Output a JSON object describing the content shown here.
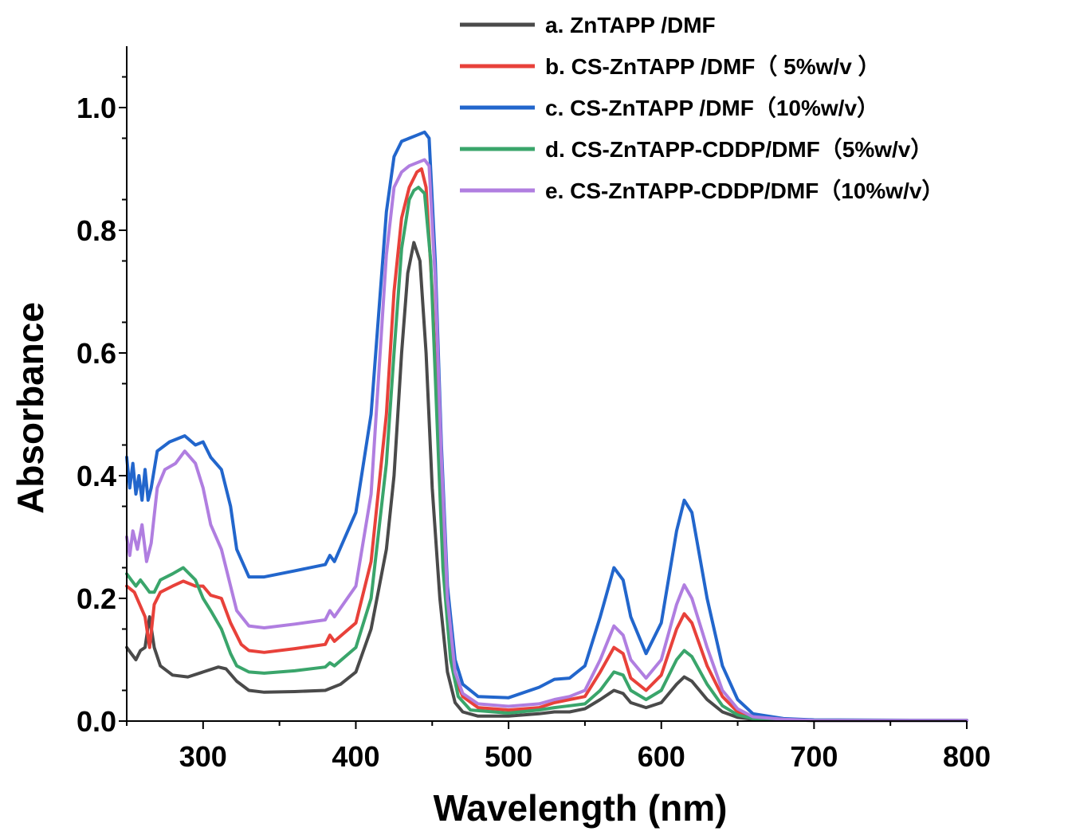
{
  "chart_data": {
    "type": "line",
    "xlabel": "Wavelength (nm)",
    "ylabel": "Absorbance",
    "xlim": [
      250,
      800
    ],
    "ylim": [
      0.0,
      1.1
    ],
    "xticks": [
      300,
      400,
      500,
      600,
      700,
      800
    ],
    "xtick_labels": [
      "300",
      "400",
      "500",
      "600",
      "700",
      "800"
    ],
    "yticks": [
      0.0,
      0.2,
      0.4,
      0.6,
      0.8,
      1.0
    ],
    "ytick_labels": [
      "0.0",
      "0.2",
      "0.4",
      "0.6",
      "0.8",
      "1.0"
    ],
    "grid": false,
    "legend_position": "top-right",
    "series": [
      {
        "name": "a. ZnTAPP /DMF",
        "color": "#4a4a4a",
        "x": [
          250,
          253,
          256,
          259,
          262,
          265,
          268,
          272,
          280,
          290,
          300,
          310,
          315,
          322,
          330,
          340,
          360,
          380,
          390,
          400,
          410,
          420,
          425,
          430,
          434,
          438,
          442,
          446,
          450,
          455,
          460,
          465,
          470,
          480,
          500,
          520,
          530,
          540,
          550,
          560,
          569,
          575,
          580,
          590,
          600,
          610,
          615,
          620,
          630,
          640,
          650,
          660,
          680,
          700,
          800
        ],
        "y": [
          0.12,
          0.11,
          0.1,
          0.115,
          0.12,
          0.17,
          0.12,
          0.09,
          0.075,
          0.072,
          0.08,
          0.088,
          0.085,
          0.065,
          0.05,
          0.047,
          0.048,
          0.05,
          0.06,
          0.08,
          0.15,
          0.28,
          0.4,
          0.6,
          0.73,
          0.78,
          0.75,
          0.6,
          0.38,
          0.2,
          0.08,
          0.03,
          0.015,
          0.008,
          0.008,
          0.012,
          0.015,
          0.015,
          0.02,
          0.035,
          0.05,
          0.045,
          0.03,
          0.022,
          0.03,
          0.06,
          0.072,
          0.065,
          0.035,
          0.015,
          0.006,
          0.003,
          0.002,
          0.001,
          0.001
        ]
      },
      {
        "name": "b. CS-ZnTAPP /DMF（ 5%w/v ）",
        "color": "#e8413a",
        "x": [
          250,
          255,
          262,
          265,
          268,
          272,
          280,
          287,
          295,
          300,
          305,
          312,
          318,
          325,
          330,
          340,
          360,
          380,
          383,
          386,
          400,
          410,
          420,
          425,
          430,
          435,
          440,
          443,
          446,
          450,
          455,
          460,
          465,
          470,
          480,
          500,
          520,
          530,
          540,
          550,
          560,
          569,
          575,
          580,
          590,
          600,
          610,
          615,
          620,
          630,
          640,
          650,
          660,
          680,
          700,
          800
        ],
        "y": [
          0.22,
          0.21,
          0.17,
          0.12,
          0.19,
          0.21,
          0.22,
          0.228,
          0.22,
          0.22,
          0.205,
          0.2,
          0.16,
          0.125,
          0.115,
          0.112,
          0.118,
          0.125,
          0.14,
          0.13,
          0.16,
          0.26,
          0.5,
          0.7,
          0.82,
          0.87,
          0.895,
          0.9,
          0.87,
          0.7,
          0.4,
          0.17,
          0.07,
          0.04,
          0.022,
          0.018,
          0.022,
          0.03,
          0.035,
          0.04,
          0.08,
          0.12,
          0.11,
          0.07,
          0.05,
          0.075,
          0.15,
          0.175,
          0.16,
          0.09,
          0.04,
          0.015,
          0.006,
          0.002,
          0.001,
          0.001
        ]
      },
      {
        "name": "c. CS-ZnTAPP /DMF（10%w/v）",
        "color": "#2266cc",
        "x": [
          250,
          252,
          254,
          256,
          258,
          260,
          262,
          264,
          266,
          270,
          278,
          288,
          295,
          300,
          305,
          312,
          318,
          322,
          330,
          340,
          360,
          380,
          383,
          386,
          400,
          410,
          420,
          425,
          430,
          435,
          440,
          445,
          448,
          452,
          456,
          460,
          465,
          470,
          480,
          500,
          520,
          530,
          540,
          550,
          560,
          569,
          575,
          580,
          590,
          600,
          610,
          615,
          620,
          630,
          640,
          650,
          660,
          680,
          700,
          800
        ],
        "y": [
          0.43,
          0.38,
          0.42,
          0.37,
          0.4,
          0.36,
          0.41,
          0.36,
          0.38,
          0.44,
          0.455,
          0.465,
          0.45,
          0.455,
          0.43,
          0.41,
          0.35,
          0.28,
          0.235,
          0.235,
          0.245,
          0.255,
          0.27,
          0.26,
          0.34,
          0.5,
          0.83,
          0.92,
          0.945,
          0.95,
          0.955,
          0.96,
          0.95,
          0.75,
          0.45,
          0.22,
          0.1,
          0.06,
          0.04,
          0.038,
          0.055,
          0.068,
          0.07,
          0.09,
          0.17,
          0.25,
          0.23,
          0.17,
          0.11,
          0.16,
          0.31,
          0.36,
          0.34,
          0.2,
          0.09,
          0.035,
          0.012,
          0.004,
          0.002,
          0.001
        ]
      },
      {
        "name": "d. CS-ZnTAPP-CDDP/DMF（5%w/v）",
        "color": "#3aa56b",
        "x": [
          250,
          253,
          256,
          259,
          262,
          265,
          268,
          272,
          280,
          287,
          295,
          300,
          305,
          312,
          318,
          322,
          330,
          340,
          360,
          380,
          383,
          386,
          400,
          410,
          420,
          425,
          430,
          435,
          438,
          441,
          445,
          449,
          453,
          457,
          462,
          467,
          475,
          500,
          520,
          530,
          540,
          550,
          560,
          569,
          575,
          580,
          590,
          600,
          610,
          615,
          620,
          630,
          640,
          650,
          660,
          680,
          700,
          800
        ],
        "y": [
          0.24,
          0.23,
          0.22,
          0.23,
          0.22,
          0.21,
          0.21,
          0.23,
          0.24,
          0.25,
          0.23,
          0.2,
          0.18,
          0.15,
          0.11,
          0.09,
          0.08,
          0.078,
          0.082,
          0.088,
          0.095,
          0.09,
          0.12,
          0.2,
          0.42,
          0.6,
          0.77,
          0.85,
          0.865,
          0.87,
          0.86,
          0.75,
          0.5,
          0.25,
          0.1,
          0.04,
          0.018,
          0.013,
          0.018,
          0.022,
          0.025,
          0.028,
          0.05,
          0.08,
          0.075,
          0.05,
          0.035,
          0.05,
          0.1,
          0.115,
          0.105,
          0.06,
          0.025,
          0.01,
          0.004,
          0.002,
          0.001,
          0.001
        ]
      },
      {
        "name": "e. CS-ZnTAPP-CDDP/DMF（10%w/v）",
        "color": "#b07ee0",
        "x": [
          250,
          252,
          254,
          257,
          260,
          263,
          266,
          270,
          275,
          282,
          288,
          295,
          300,
          305,
          312,
          318,
          322,
          330,
          340,
          360,
          380,
          383,
          386,
          400,
          410,
          420,
          425,
          430,
          435,
          440,
          445,
          448,
          452,
          456,
          460,
          465,
          470,
          480,
          500,
          520,
          530,
          540,
          550,
          560,
          569,
          575,
          580,
          590,
          600,
          610,
          615,
          620,
          630,
          640,
          650,
          660,
          680,
          700,
          800
        ],
        "y": [
          0.3,
          0.27,
          0.31,
          0.28,
          0.32,
          0.26,
          0.29,
          0.38,
          0.41,
          0.42,
          0.44,
          0.42,
          0.38,
          0.32,
          0.28,
          0.22,
          0.18,
          0.155,
          0.152,
          0.158,
          0.165,
          0.18,
          0.17,
          0.22,
          0.37,
          0.76,
          0.87,
          0.895,
          0.905,
          0.91,
          0.915,
          0.905,
          0.72,
          0.43,
          0.2,
          0.08,
          0.045,
          0.028,
          0.024,
          0.028,
          0.035,
          0.04,
          0.05,
          0.1,
          0.155,
          0.14,
          0.1,
          0.07,
          0.1,
          0.19,
          0.222,
          0.2,
          0.12,
          0.05,
          0.02,
          0.007,
          0.003,
          0.001,
          0.001
        ]
      }
    ]
  }
}
